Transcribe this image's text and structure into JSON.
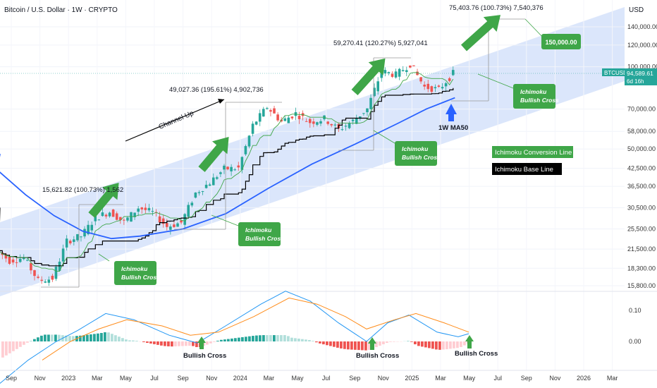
{
  "header": {
    "title": "Bitcoin / U.S. Dollar · 1W · CRYPTO",
    "currency": "USD"
  },
  "price_axis": {
    "labels": [
      "140,000.00",
      "120,000.00",
      "100,000.00",
      "70,000.00",
      "58,000.00",
      "50,000.00",
      "42,500.00",
      "36,500.00",
      "30,500.00",
      "25,500.00",
      "21,500.00",
      "18,300.00",
      "15,800.00"
    ],
    "current_symbol": "BTCUSD",
    "current_price": "94,589.61",
    "countdown": "6d 16h"
  },
  "macd_axis": {
    "labels": [
      "0.10",
      "0.00"
    ]
  },
  "time_axis": {
    "labels": [
      "Sep",
      "Nov",
      "2023",
      "Mar",
      "May",
      "Jul",
      "Sep",
      "Nov",
      "2024",
      "Mar",
      "May",
      "Jul",
      "Sep",
      "Nov",
      "2025",
      "Mar",
      "May",
      "Jul",
      "Sep",
      "Nov",
      "2026",
      "Mar"
    ]
  },
  "annotations": {
    "measure_1": "15,621.82 (100.73%) 1,562",
    "measure_2": "49,027.36 (195.61%) 4,902,736",
    "measure_3": "59,270.41 (120.27%) 5,927,041",
    "measure_4": "75,403.76 (100.73%) 7,540,376",
    "channel": "Channel Up",
    "target": "150,000.00",
    "ma50": "1W MA50",
    "ichimoku_line1": "Ichimoku",
    "ichimoku_line2": "Bullish Cross",
    "bullish_cross": "Bullish Cross"
  },
  "legend": {
    "conversion": "Ichimoku Conversion Line",
    "base": "Ichimoku Base Line"
  },
  "colors": {
    "up": "#26a69a",
    "down": "#ef5350",
    "ma50": "#2962ff",
    "channel": "#dbe6fb",
    "callout": "#3fa648",
    "base": "#000000",
    "conversion": "#3fa648"
  },
  "chart_data": {
    "type": "candlestick",
    "title": "Bitcoin / U.S. Dollar · 1W · CRYPTO",
    "y_scale": "log",
    "ylim": [
      14500,
      165000
    ],
    "x_range": [
      "2022-08",
      "2026-04"
    ],
    "series": [
      {
        "name": "BTCUSD",
        "points": [
          [
            "2022-08",
            21500
          ],
          [
            "2022-09",
            19500
          ],
          [
            "2022-10",
            20000
          ],
          [
            "2022-11",
            16500
          ],
          [
            "2022-12",
            16800
          ],
          [
            "2023-01",
            23000
          ],
          [
            "2023-02",
            24000
          ],
          [
            "2023-03",
            28000
          ],
          [
            "2023-04",
            29500
          ],
          [
            "2023-05",
            27000
          ],
          [
            "2023-06",
            30500
          ],
          [
            "2023-07",
            29300
          ],
          [
            "2023-08",
            26000
          ],
          [
            "2023-09",
            26900
          ],
          [
            "2023-10",
            34500
          ],
          [
            "2023-11",
            37700
          ],
          [
            "2023-12",
            42300
          ],
          [
            "2024-01",
            42500
          ],
          [
            "2024-02",
            61000
          ],
          [
            "2024-03",
            71300
          ],
          [
            "2024-04",
            63000
          ],
          [
            "2024-05",
            67500
          ],
          [
            "2024-06",
            62700
          ],
          [
            "2024-07",
            64600
          ],
          [
            "2024-08",
            58900
          ],
          [
            "2024-09",
            63300
          ],
          [
            "2024-10",
            70200
          ],
          [
            "2024-11",
            96400
          ],
          [
            "2024-12",
            93400
          ],
          [
            "2025-01",
            102400
          ],
          [
            "2025-02",
            84300
          ],
          [
            "2025-03",
            82500
          ],
          [
            "2025-04",
            94589.61
          ]
        ]
      },
      {
        "name": "1W MA50",
        "points": [
          [
            "2022-08",
            42000
          ],
          [
            "2022-10",
            34000
          ],
          [
            "2022-12",
            28500
          ],
          [
            "2023-02",
            25000
          ],
          [
            "2023-04",
            23500
          ],
          [
            "2023-06",
            24000
          ],
          [
            "2023-09",
            25500
          ],
          [
            "2023-12",
            29000
          ],
          [
            "2024-03",
            36000
          ],
          [
            "2024-06",
            44000
          ],
          [
            "2024-09",
            52000
          ],
          [
            "2024-12",
            62000
          ],
          [
            "2025-02",
            70000
          ],
          [
            "2025-04",
            77000
          ]
        ]
      }
    ],
    "annotations": [
      "15,621.82 (100.73%) 1,562",
      "49,027.36 (195.61%) 4,902,736",
      "59,270.41 (120.27%) 5,927,041",
      "75,403.76 (100.73%) 7,540,376",
      "Channel Up",
      "150,000.00",
      "1W MA50"
    ],
    "legend_position": "right"
  }
}
